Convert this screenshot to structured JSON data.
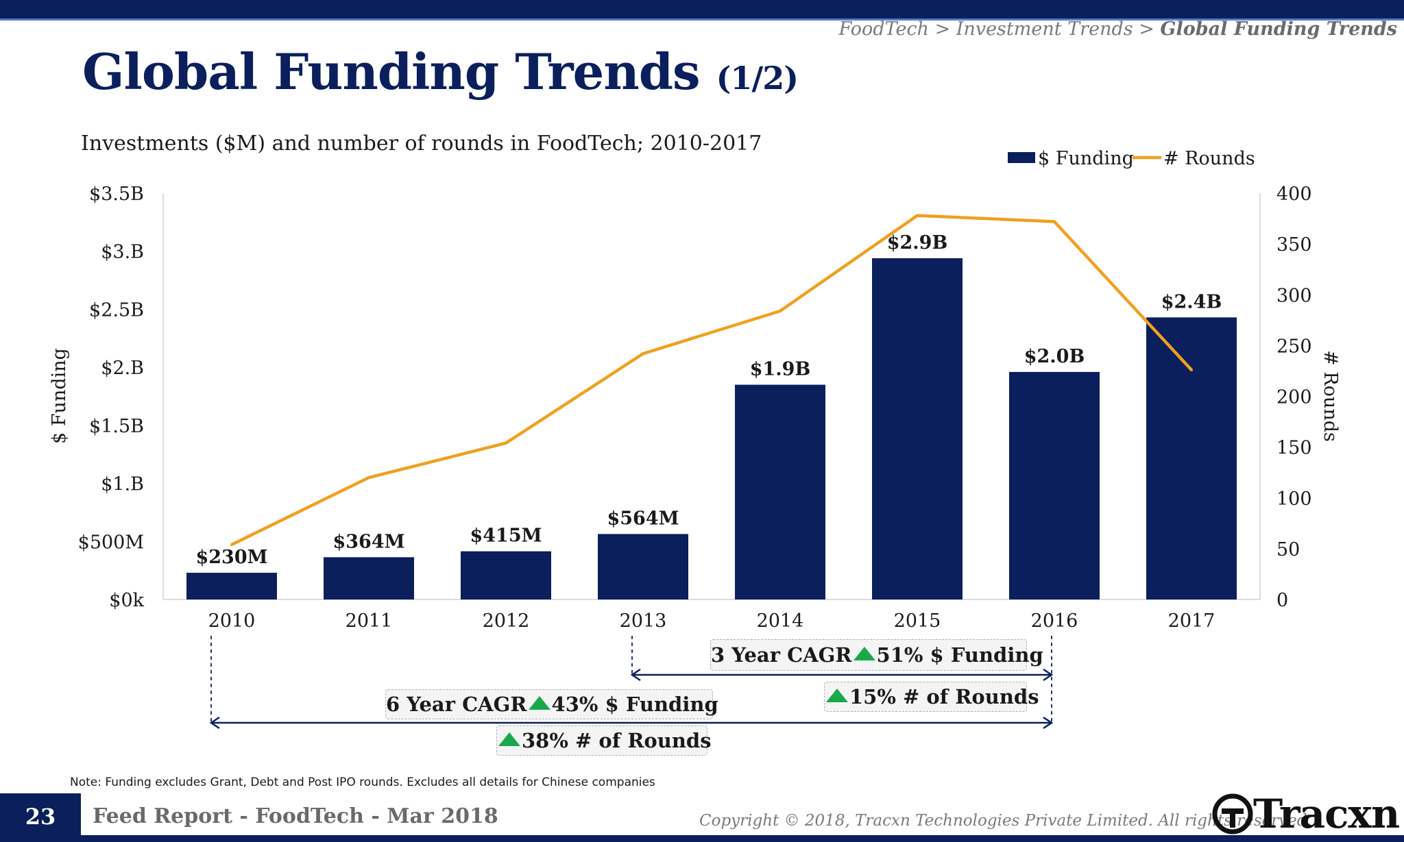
{
  "header": {
    "breadcrumb_prefix": "FoodTech > Investment Trends > ",
    "breadcrumb_current": "Global Funding Trends",
    "title": "Global Funding Trends",
    "title_suffix": "(1/2)",
    "subtitle": "Investments ($M) and number of rounds in FoodTech; 2010-2017"
  },
  "colors": {
    "navy": "#0a1f5c",
    "bar": "#0a1f5c",
    "line": "#f0a020",
    "arrow_green": "#1aa84b"
  },
  "chart_data": {
    "type": "bar",
    "categories": [
      "2010",
      "2011",
      "2012",
      "2013",
      "2014",
      "2015",
      "2016",
      "2017"
    ],
    "series": [
      {
        "name": "$ Funding",
        "type": "bar",
        "axis": "left",
        "values": [
          230,
          364,
          415,
          564,
          1850,
          2940,
          1960,
          2430
        ],
        "labels": [
          "$230M",
          "$364M",
          "$415M",
          "$564M",
          "$1.9B",
          "$2.9B",
          "$2.0B",
          "$2.4B"
        ]
      },
      {
        "name": "# Rounds",
        "type": "line",
        "axis": "right",
        "values": [
          54,
          120,
          154,
          242,
          284,
          378,
          372,
          226
        ]
      }
    ],
    "ylabel": "$ Funding",
    "y2label": "# Rounds",
    "ylim": [
      0,
      3500
    ],
    "y2lim": [
      0,
      400
    ],
    "yticks": [
      0,
      500,
      1000,
      1500,
      2000,
      2500,
      3000,
      3500
    ],
    "yticklabels": [
      "$0k",
      "$500M",
      "$1.B",
      "$1.5B",
      "$2.B",
      "$2.5B",
      "$3.B",
      "$3.5B"
    ],
    "y2ticks": [
      0,
      50,
      100,
      150,
      200,
      250,
      300,
      350,
      400
    ],
    "y2ticklabels": [
      "0",
      "50",
      "100",
      "150",
      "200",
      "250",
      "300",
      "350",
      "400"
    ],
    "legend": "top-right",
    "legend_entries": [
      "$ Funding",
      "# Rounds"
    ],
    "grid": false,
    "annotations": {
      "cagr3_funding_prefix": "3 Year CAGR",
      "cagr3_funding_suffix": "51% $ Funding",
      "cagr3_rounds": "15% # of Rounds",
      "cagr6_funding_prefix": "6 Year CAGR",
      "cagr6_funding_suffix": "43% $ Funding",
      "cagr6_rounds": "38% # of Rounds"
    }
  },
  "footer": {
    "note": "Note: Funding excludes Grant, Debt and Post IPO rounds. Excludes all details for Chinese companies",
    "page_number": "23",
    "report": "Feed Report - FoodTech - Mar 2018",
    "copyright": "Copyright © 2018, Tracxn Technologies Private Limited. All rights reserved.",
    "logo_text": "Tracxn"
  }
}
